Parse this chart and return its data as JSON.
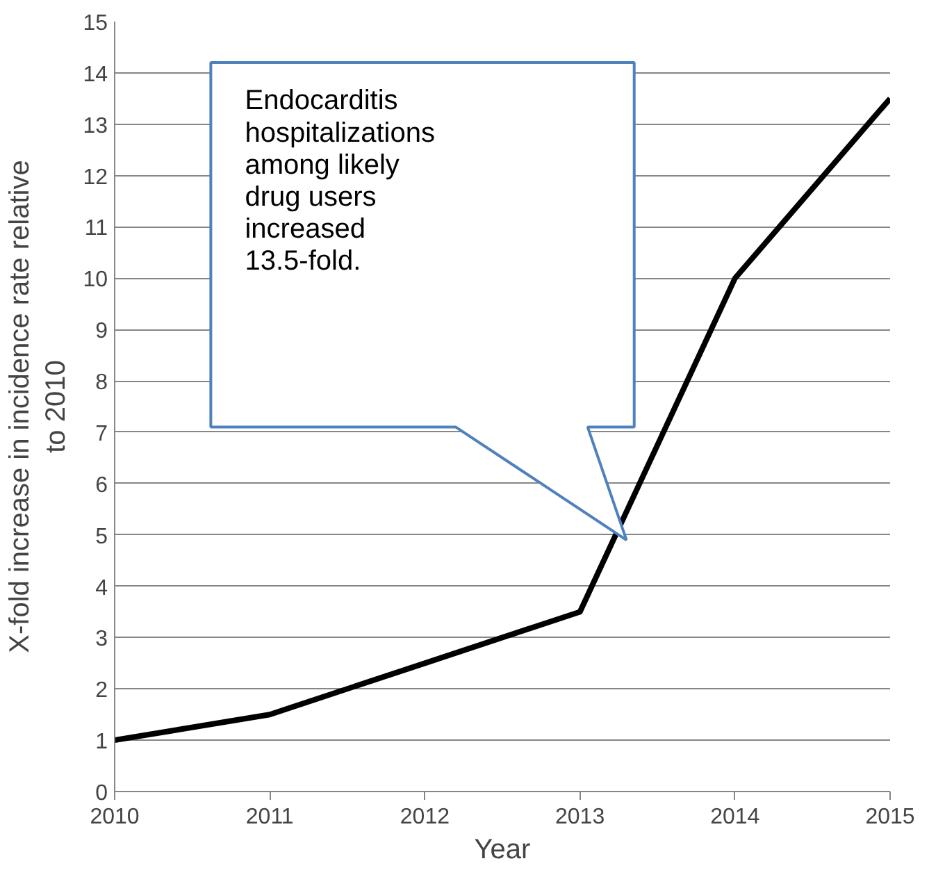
{
  "chart_data": {
    "type": "line",
    "xlabel": "Year",
    "ylabel": "X-fold increase in incidence rate relative to 2010",
    "x": [
      2010,
      2011,
      2012,
      2013,
      2014,
      2015
    ],
    "series": [
      {
        "color": "#000000",
        "values": [
          1,
          1.5,
          2.5,
          3.5,
          10,
          13.5
        ]
      }
    ],
    "xlim": [
      2010,
      2015
    ],
    "xticks": [
      2010,
      2011,
      2012,
      2013,
      2014,
      2015
    ],
    "ylim": [
      0,
      15
    ],
    "yticks": [
      0,
      1,
      2,
      3,
      4,
      5,
      6,
      7,
      8,
      9,
      10,
      11,
      12,
      13,
      14,
      15
    ],
    "grid": "y",
    "marker": "none",
    "line_style": "solid",
    "annotations": [
      "Endocarditis hospitalizations among likely drug users increased 13.5-fold."
    ]
  }
}
